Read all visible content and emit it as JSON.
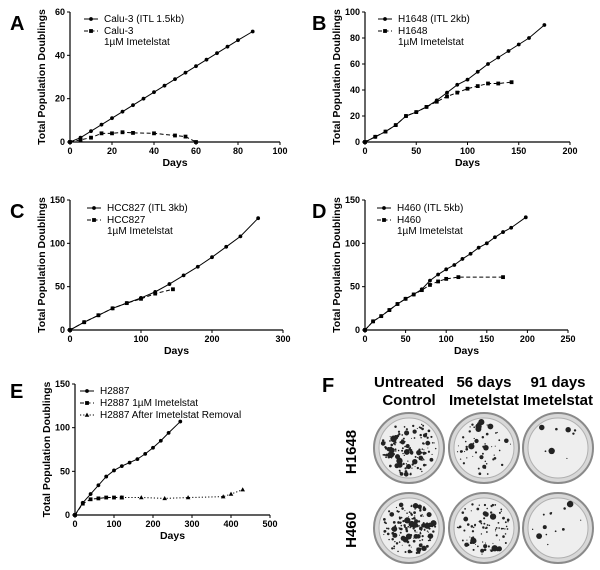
{
  "chart_data": [
    {
      "id": "A",
      "type": "line",
      "panel_letter": "A",
      "xlabel": "Days",
      "ylabel": "Total Population Doublings",
      "xlim": [
        0,
        100
      ],
      "ylim": [
        0,
        60
      ],
      "xticks": [
        0,
        20,
        40,
        60,
        80,
        100
      ],
      "yticks": [
        0,
        20,
        40,
        60
      ],
      "series": [
        {
          "name": "Calu-3 (ITL 1.5kb)",
          "style": "solid",
          "marker": "circle",
          "x": [
            0,
            5,
            10,
            15,
            20,
            25,
            30,
            35,
            40,
            45,
            50,
            55,
            60,
            65,
            70,
            75,
            80,
            87
          ],
          "y": [
            0,
            2,
            5,
            8,
            11,
            14,
            17,
            20,
            23,
            26,
            29,
            32,
            35,
            38,
            41,
            44,
            47,
            51
          ]
        },
        {
          "name": "Calu-3\n1μM Imetelstat",
          "style": "dashed",
          "marker": "square",
          "x": [
            0,
            5,
            10,
            15,
            20,
            25,
            30,
            40,
            50,
            55,
            60
          ],
          "y": [
            0,
            1,
            2,
            4,
            4,
            4.5,
            4.2,
            4,
            3,
            2.5,
            0
          ]
        }
      ]
    },
    {
      "id": "B",
      "type": "line",
      "panel_letter": "B",
      "xlabel": "Days",
      "ylabel": "Total Population Doublings",
      "xlim": [
        0,
        200
      ],
      "ylim": [
        0,
        100
      ],
      "xticks": [
        0,
        50,
        100,
        150,
        200
      ],
      "yticks": [
        0,
        20,
        40,
        60,
        80,
        100
      ],
      "series": [
        {
          "name": "H1648 (ITL 2kb)",
          "style": "solid",
          "marker": "circle",
          "x": [
            0,
            10,
            20,
            30,
            40,
            50,
            60,
            70,
            80,
            90,
            100,
            110,
            120,
            130,
            140,
            150,
            160,
            175
          ],
          "y": [
            0,
            4,
            8,
            13,
            20,
            23,
            27,
            32,
            38,
            44,
            48,
            54,
            60,
            65,
            70,
            75,
            80,
            90
          ]
        },
        {
          "name": "H1648\n1μM Imetelstat",
          "style": "dashed",
          "marker": "square",
          "x": [
            0,
            10,
            20,
            30,
            40,
            50,
            60,
            70,
            80,
            90,
            100,
            110,
            120,
            130,
            143
          ],
          "y": [
            0,
            4,
            8,
            13,
            20,
            23,
            27,
            31,
            35,
            38,
            41,
            43,
            45,
            45,
            46
          ]
        }
      ]
    },
    {
      "id": "C",
      "type": "line",
      "panel_letter": "C",
      "xlabel": "Days",
      "ylabel": "Total Population Doublings",
      "xlim": [
        0,
        300
      ],
      "ylim": [
        0,
        150
      ],
      "xticks": [
        0,
        100,
        200,
        300
      ],
      "yticks": [
        0,
        50,
        100,
        150
      ],
      "series": [
        {
          "name": "HCC827 (ITL 3kb)",
          "style": "solid",
          "marker": "circle",
          "x": [
            0,
            20,
            40,
            60,
            80,
            100,
            120,
            140,
            160,
            180,
            200,
            220,
            240,
            265
          ],
          "y": [
            0,
            9,
            17,
            25,
            31,
            37,
            44,
            53,
            63,
            73,
            84,
            96,
            108,
            129
          ]
        },
        {
          "name": "HCC827\n1μM Imetelstat",
          "style": "dashed",
          "marker": "square",
          "x": [
            0,
            20,
            40,
            60,
            80,
            100,
            120,
            145
          ],
          "y": [
            0,
            9,
            17,
            25,
            31,
            36,
            42,
            47
          ]
        }
      ]
    },
    {
      "id": "D",
      "type": "line",
      "panel_letter": "D",
      "xlabel": "Days",
      "ylabel": "Total Population Doublings",
      "xlim": [
        0,
        250
      ],
      "ylim": [
        0,
        150
      ],
      "xticks": [
        0,
        50,
        100,
        150,
        200,
        250
      ],
      "yticks": [
        0,
        50,
        100,
        150
      ],
      "series": [
        {
          "name": "H460 (ITL 5kb)",
          "style": "solid",
          "marker": "circle",
          "x": [
            0,
            10,
            20,
            30,
            40,
            50,
            60,
            70,
            80,
            90,
            100,
            110,
            120,
            130,
            140,
            150,
            160,
            170,
            180,
            198
          ],
          "y": [
            0,
            10,
            16,
            23,
            30,
            36,
            41,
            47,
            57,
            64,
            70,
            75,
            82,
            88,
            95,
            100,
            107,
            113,
            118,
            130
          ]
        },
        {
          "name": "H460\n1μM Imetelstat",
          "style": "dashed",
          "marker": "square",
          "x": [
            0,
            10,
            20,
            30,
            40,
            50,
            60,
            70,
            80,
            90,
            100,
            115,
            170
          ],
          "y": [
            0,
            10,
            16,
            23,
            30,
            36,
            41,
            46,
            52,
            56,
            59,
            61,
            61
          ]
        }
      ]
    },
    {
      "id": "E",
      "type": "line",
      "panel_letter": "E",
      "xlabel": "Days",
      "ylabel": "Total Population Doublings",
      "xlim": [
        0,
        500
      ],
      "ylim": [
        0,
        150
      ],
      "xticks": [
        0,
        100,
        200,
        300,
        400,
        500
      ],
      "yticks": [
        0,
        50,
        100,
        150
      ],
      "series": [
        {
          "name": "H2887",
          "style": "solid",
          "marker": "circle",
          "x": [
            0,
            20,
            40,
            60,
            80,
            100,
            120,
            140,
            160,
            180,
            200,
            220,
            240,
            270
          ],
          "y": [
            0,
            14,
            24,
            34,
            44,
            51,
            56,
            60,
            64,
            70,
            77,
            85,
            94,
            107
          ]
        },
        {
          "name": "H2887 1μM Imetelstat",
          "style": "dashed",
          "marker": "square",
          "x": [
            0,
            20,
            40,
            60,
            80,
            100,
            120
          ],
          "y": [
            0,
            13,
            18,
            19,
            20,
            20,
            20
          ]
        },
        {
          "name": "H2887 After Imetelstat Removal",
          "style": "dotted",
          "marker": "triangle",
          "x": [
            120,
            170,
            230,
            290,
            380,
            400,
            430
          ],
          "y": [
            20,
            20,
            19,
            20,
            21,
            24,
            29
          ]
        }
      ]
    }
  ],
  "panel_f": {
    "letter": "F",
    "column_headers": [
      [
        "Untreated",
        "Control"
      ],
      [
        "56 days",
        "Imetelstat"
      ],
      [
        "91 days",
        "Imetelstat"
      ]
    ],
    "row_labels": [
      "H1648",
      "H460"
    ]
  }
}
